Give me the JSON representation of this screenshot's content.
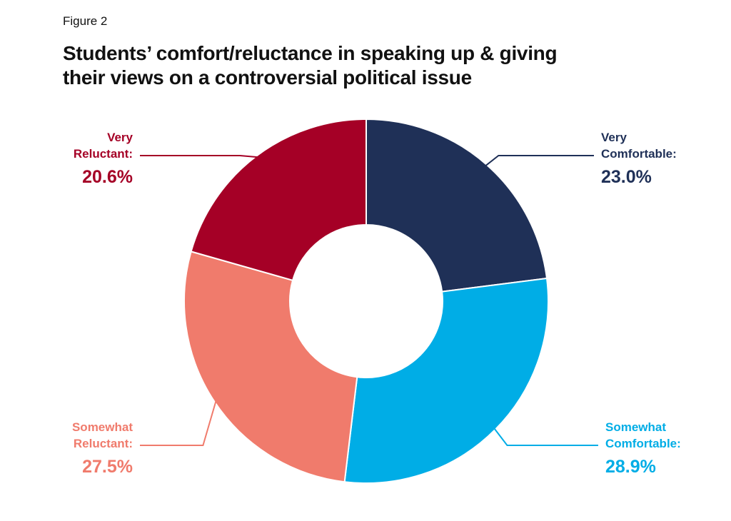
{
  "figure_label": "Figure 2",
  "title_lines": [
    "Students’ comfort/reluctance in speaking up & giving",
    "their views on a controversial political issue"
  ],
  "chart_data": {
    "type": "pie",
    "variant": "donut",
    "title": "Students’ comfort/reluctance in speaking up & giving their views on a controversial political issue",
    "slices": [
      {
        "label_lines": [
          "Very",
          "Comfortable:"
        ],
        "value": 23.0,
        "value_label": "23.0%",
        "color": "#1f3057"
      },
      {
        "label_lines": [
          "Somewhat",
          "Comfortable:"
        ],
        "value": 28.9,
        "value_label": "28.9%",
        "color": "#00ade6"
      },
      {
        "label_lines": [
          "Somewhat",
          "Reluctant:"
        ],
        "value": 27.5,
        "value_label": "27.5%",
        "color": "#f07b6c"
      },
      {
        "label_lines": [
          "Very",
          "Reluctant:"
        ],
        "value": 20.6,
        "value_label": "20.6%",
        "color": "#a50026"
      }
    ],
    "start": "12 o'clock, clockwise"
  }
}
